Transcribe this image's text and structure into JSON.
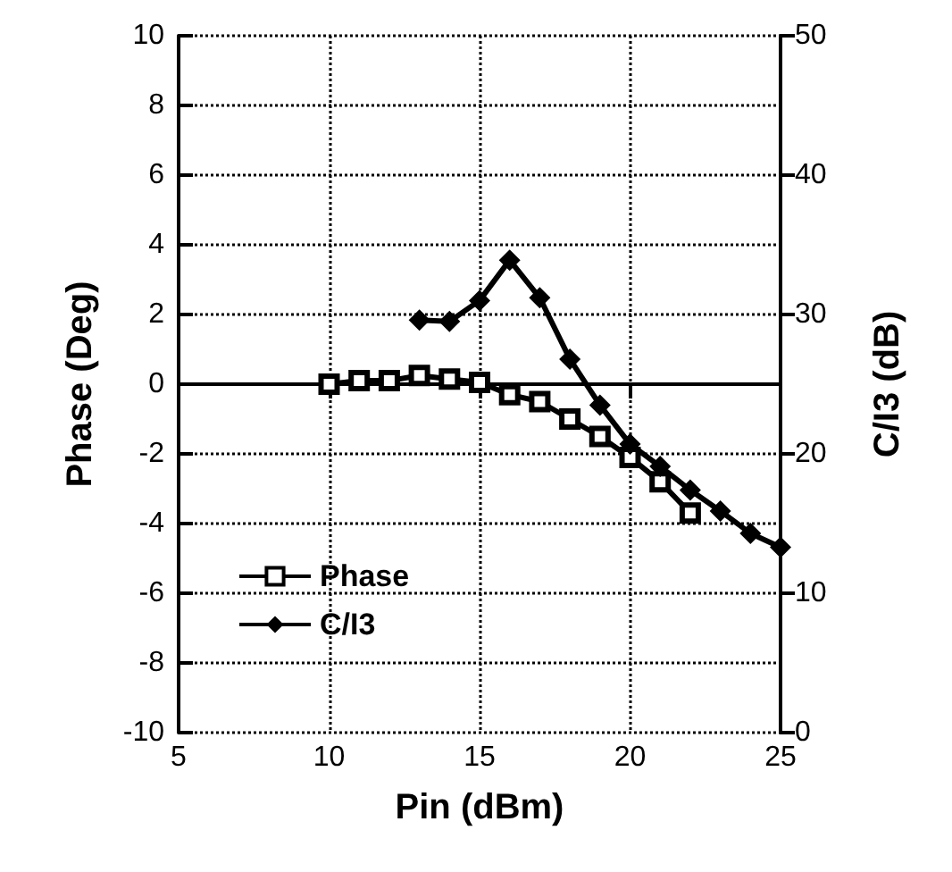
{
  "chart_data": {
    "type": "line",
    "xlabel": "Pin (dBm)",
    "ylabel": "Phase (Deg)",
    "y2label": "C/I3 (dB)",
    "xlim": [
      5,
      25
    ],
    "xticks": [
      5,
      10,
      15,
      20,
      25
    ],
    "ylim": [
      -10,
      10
    ],
    "yticks": [
      -10,
      -8,
      -6,
      -4,
      -2,
      0,
      2,
      4,
      6,
      8,
      10
    ],
    "y2lim": [
      0,
      50
    ],
    "y2ticks": [
      0,
      10,
      20,
      30,
      40,
      50
    ],
    "grid": true,
    "legend": "bottom left",
    "series": [
      {
        "name": "Phase",
        "color": "#000000",
        "marker": "square",
        "x": [
          10,
          11,
          12,
          13,
          14,
          15,
          16,
          17,
          18,
          19,
          20,
          21,
          22
        ],
        "values": [
          0,
          0.1,
          0.1,
          0.25,
          0.15,
          0.05,
          -0.3,
          -0.5,
          -1.0,
          -1.5,
          -2.1,
          -2.8,
          -3.7
        ]
      },
      {
        "name": "C/I3",
        "color": "#000000",
        "marker": "diamond",
        "axis": "y2",
        "x": [
          13,
          14,
          15,
          16,
          17,
          18,
          19,
          20,
          21,
          22,
          23,
          24,
          25
        ],
        "values": [
          29.6,
          29.5,
          31,
          33.9,
          31.2,
          26.8,
          23.5,
          20.7,
          19.1,
          17.4,
          15.9,
          14.3,
          13.3
        ]
      }
    ]
  }
}
